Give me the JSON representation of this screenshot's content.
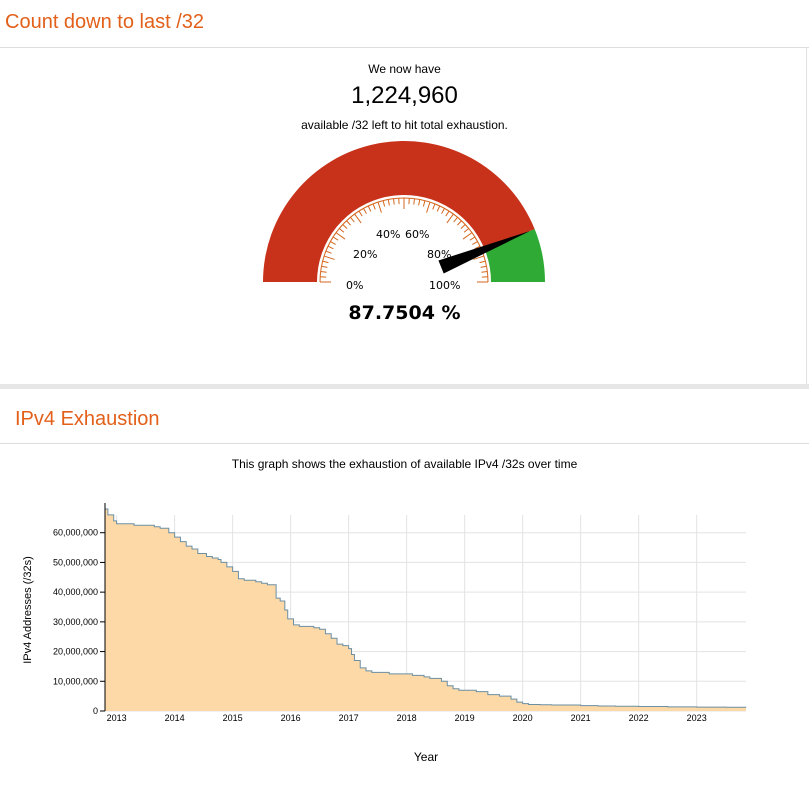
{
  "countdown": {
    "title": "Count down to last /32",
    "intro": "We now have",
    "count": "1,224,960",
    "outro": "available /32 left to hit total exhaustion.",
    "percent_label": "87.7504 %",
    "percent_value": 87.7504,
    "gauge_labels": [
      "0%",
      "20%",
      "40%",
      "60%",
      "80%",
      "100%"
    ],
    "colors": {
      "used": "#c8321a",
      "remaining": "#2fab35",
      "needle": "#000000"
    }
  },
  "exhaustion": {
    "title": "IPv4 Exhaustion",
    "subtitle": "This graph shows the exhaustion of available IPv4 /32s over time"
  },
  "chart_data": {
    "type": "area",
    "title": "",
    "xlabel": "Year",
    "ylabel": "IPv4 Addresses (/32s)",
    "xlim": [
      2012.8,
      2023.85
    ],
    "ylim": [
      0,
      70000000
    ],
    "x_ticks": [
      2013,
      2014,
      2015,
      2016,
      2017,
      2018,
      2019,
      2020,
      2021,
      2022,
      2023
    ],
    "x_tick_labels": [
      "2013",
      "2014",
      "2015",
      "2016",
      "2017",
      "2018",
      "2019",
      "2020",
      "2021",
      "2022",
      "2023"
    ],
    "y_ticks": [
      0,
      10000000,
      20000000,
      30000000,
      40000000,
      50000000,
      60000000
    ],
    "y_tick_labels": [
      "0",
      "10,000,000",
      "20,000,000",
      "30,000,000",
      "40,000,000",
      "50,000,000",
      "60,000,000"
    ],
    "grid": true,
    "colors": {
      "fill": "#fdd9a8",
      "line": "#6b8fa3"
    },
    "x": [
      2012.8,
      2012.85,
      2012.95,
      2013.0,
      2013.05,
      2013.15,
      2013.3,
      2013.5,
      2013.65,
      2013.75,
      2013.9,
      2014.0,
      2014.1,
      2014.2,
      2014.3,
      2014.4,
      2014.55,
      2014.65,
      2014.75,
      2014.8,
      2014.9,
      2015.0,
      2015.1,
      2015.2,
      2015.3,
      2015.4,
      2015.5,
      2015.6,
      2015.75,
      2015.82,
      2015.9,
      2015.95,
      2016.05,
      2016.15,
      2016.25,
      2016.4,
      2016.5,
      2016.6,
      2016.7,
      2016.8,
      2016.9,
      2017.0,
      2017.05,
      2017.1,
      2017.2,
      2017.3,
      2017.4,
      2017.5,
      2017.6,
      2017.7,
      2017.9,
      2018.1,
      2018.3,
      2018.4,
      2018.5,
      2018.6,
      2018.7,
      2018.8,
      2018.9,
      2019.0,
      2019.2,
      2019.4,
      2019.6,
      2019.8,
      2019.9,
      2020.0,
      2020.1,
      2020.3,
      2020.5,
      2020.8,
      2021.0,
      2021.3,
      2021.6,
      2022.0,
      2022.5,
      2023.0,
      2023.5,
      2023.85
    ],
    "y": [
      68000000,
      66000000,
      64000000,
      63000000,
      63000000,
      63000000,
      62500000,
      62500000,
      62000000,
      61500000,
      60000000,
      58500000,
      57000000,
      55500000,
      54500000,
      53000000,
      52000000,
      51500000,
      51000000,
      50000000,
      48500000,
      47000000,
      44500000,
      44000000,
      44000000,
      43500000,
      43000000,
      42500000,
      38000000,
      37000000,
      34000000,
      31000000,
      29000000,
      28500000,
      28500000,
      28000000,
      27500000,
      26000000,
      24500000,
      22500000,
      22000000,
      21000000,
      19000000,
      17000000,
      14500000,
      13500000,
      13000000,
      13000000,
      13000000,
      12500000,
      12500000,
      12000000,
      11500000,
      11000000,
      11000000,
      10000000,
      8500000,
      7500000,
      7000000,
      7000000,
      6500000,
      5500000,
      5000000,
      4000000,
      3000000,
      2500000,
      2200000,
      2100000,
      2000000,
      2000000,
      1800000,
      1700000,
      1600000,
      1500000,
      1400000,
      1300000,
      1250000,
      1224960
    ]
  }
}
